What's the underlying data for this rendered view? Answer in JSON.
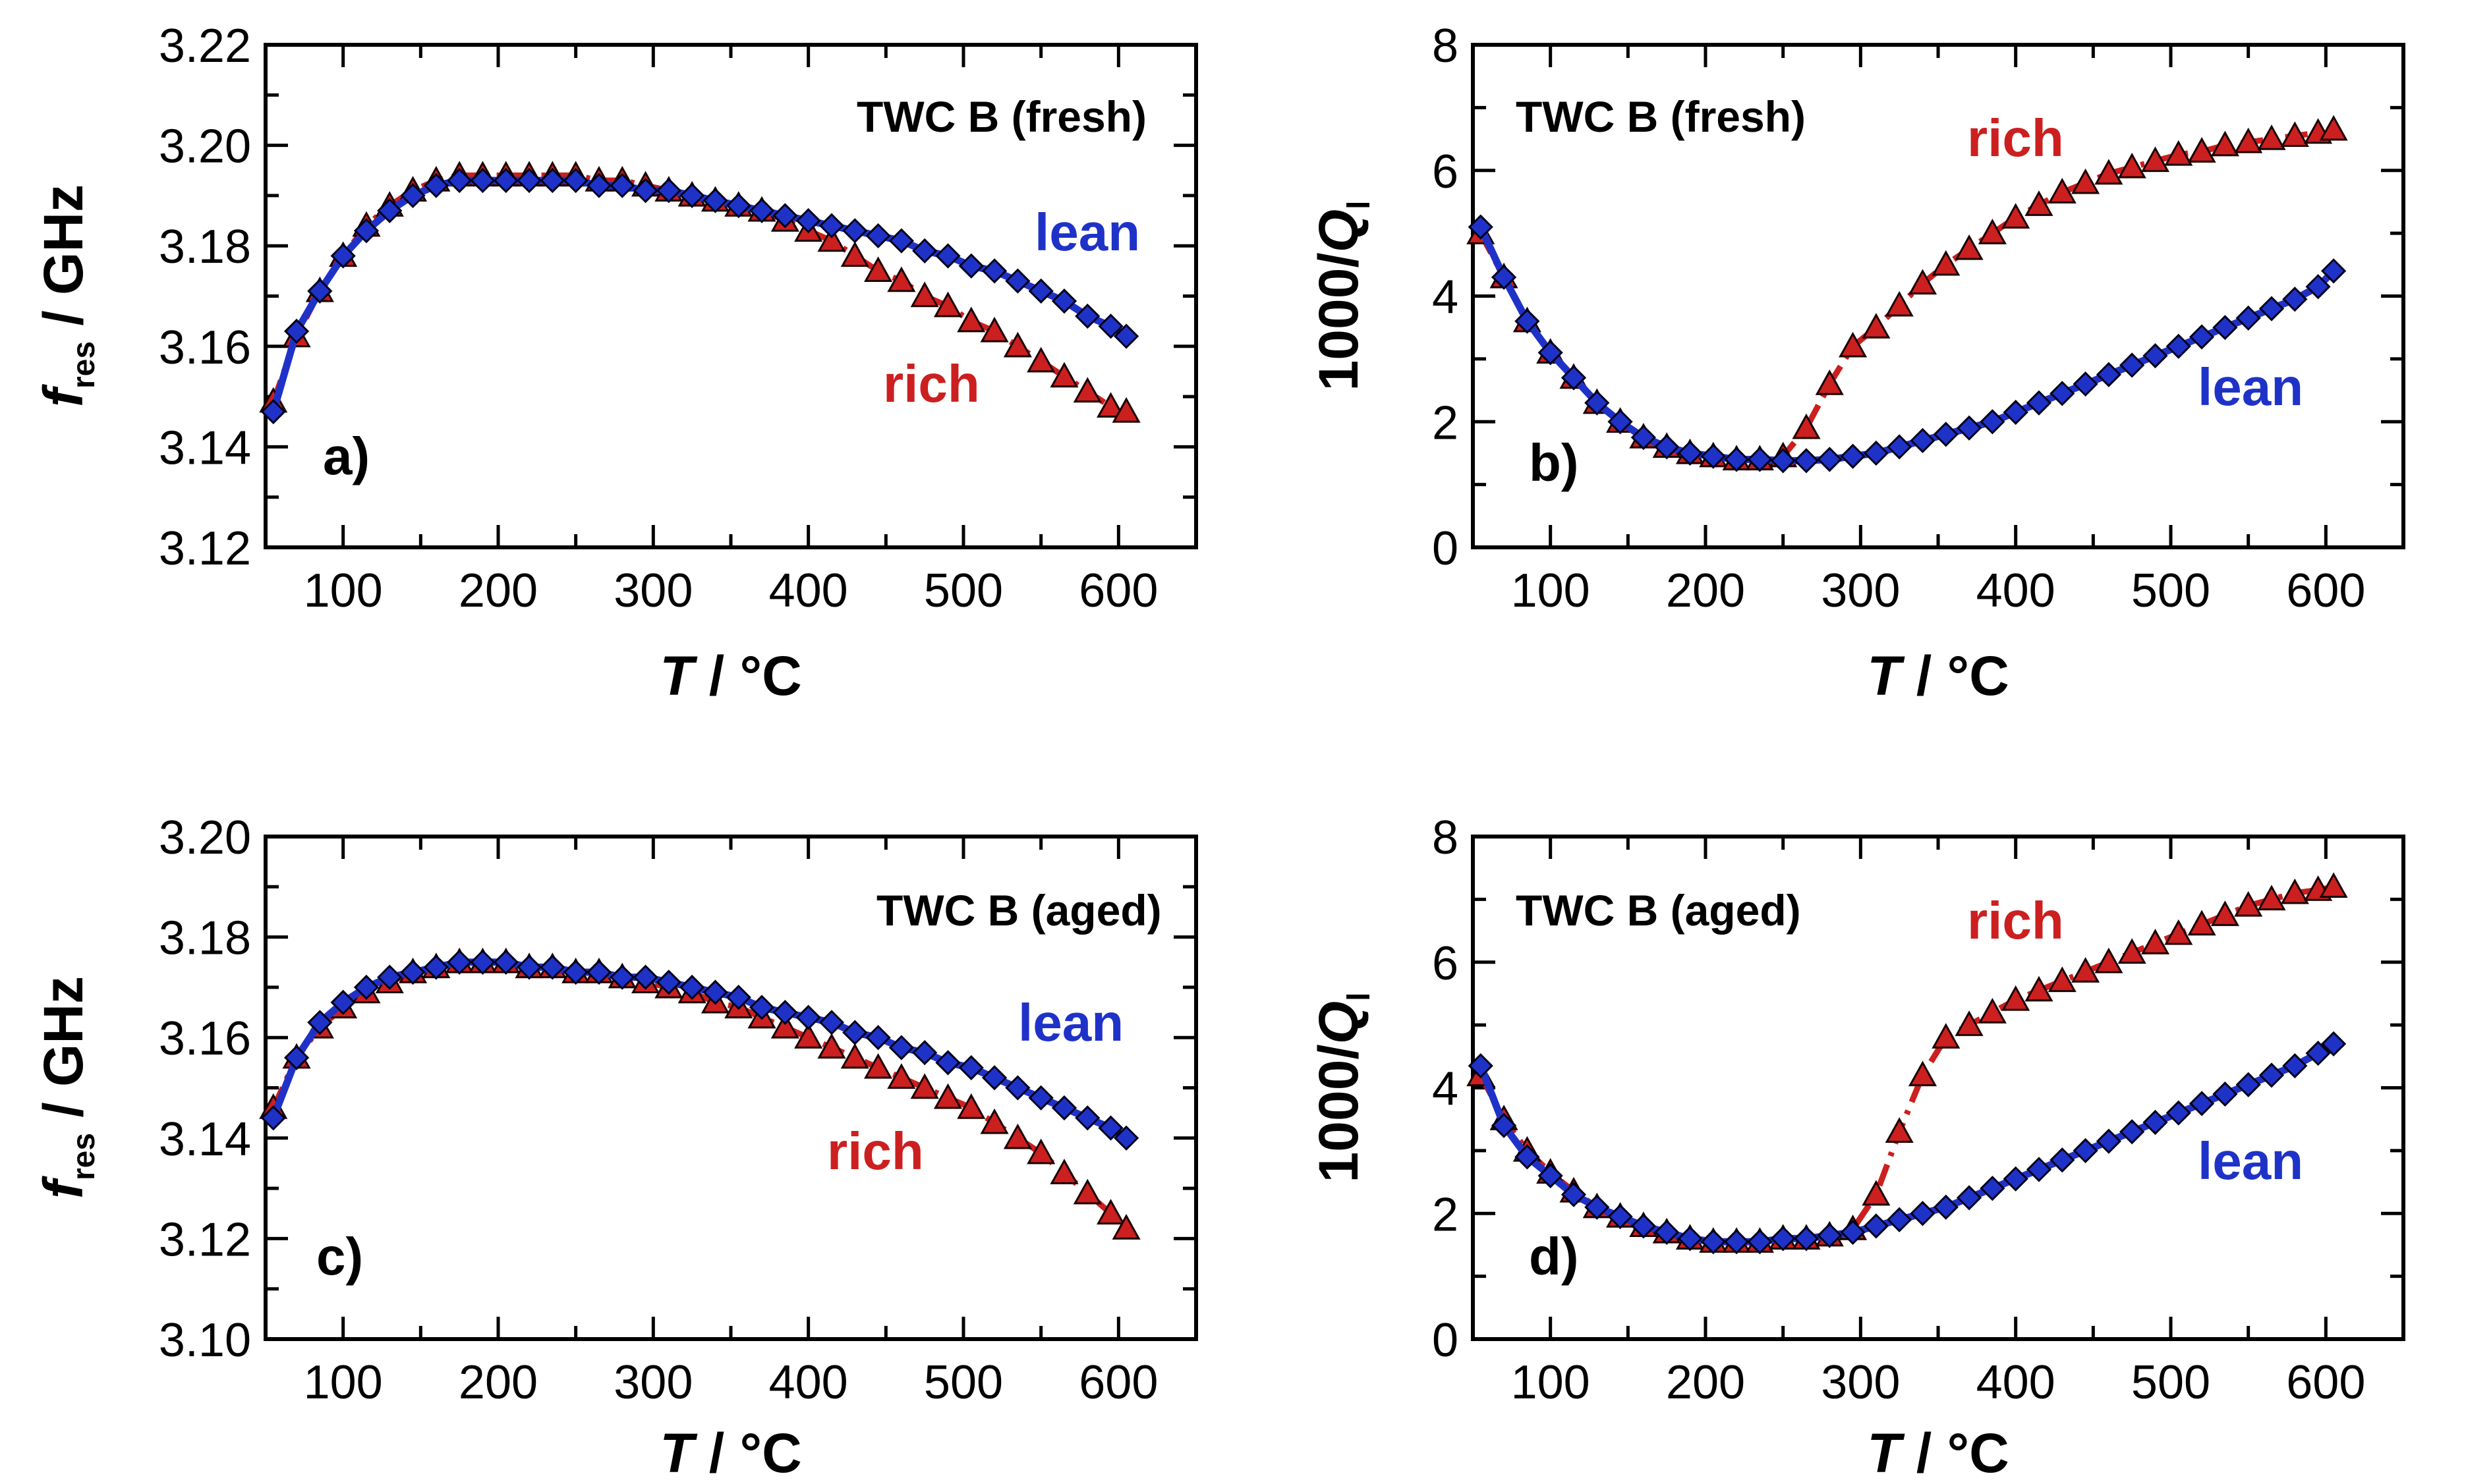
{
  "chart_data": [
    {
      "type": "line",
      "panel_label": "a)",
      "condition_label": "TWC B (fresh)",
      "xlabel_italic": "T",
      "xlabel_rest": " / °C",
      "ylabel_italic": "f",
      "ylabel_sub": "res",
      "ylabel_rest": " / GHz",
      "xlim": [
        50,
        650
      ],
      "ylim": [
        3.12,
        3.22
      ],
      "xticks": [
        "100",
        "200",
        "300",
        "400",
        "500",
        "600"
      ],
      "yticks": [
        "3.12",
        "3.14",
        "3.16",
        "3.18",
        "3.20",
        "3.22"
      ],
      "series": [
        {
          "name": "rich",
          "label": "rich",
          "color": "#cc1f1f",
          "marker": "triangle",
          "x": [
            55,
            70,
            85,
            100,
            115,
            130,
            145,
            160,
            175,
            190,
            205,
            220,
            235,
            250,
            265,
            280,
            295,
            310,
            325,
            340,
            355,
            370,
            385,
            400,
            415,
            430,
            445,
            460,
            475,
            490,
            505,
            520,
            535,
            550,
            565,
            580,
            595,
            605
          ],
          "y": [
            3.149,
            3.162,
            3.171,
            3.178,
            3.184,
            3.188,
            3.191,
            3.193,
            3.194,
            3.194,
            3.194,
            3.194,
            3.194,
            3.194,
            3.193,
            3.193,
            3.192,
            3.191,
            3.19,
            3.189,
            3.188,
            3.187,
            3.185,
            3.183,
            3.181,
            3.178,
            3.175,
            3.173,
            3.17,
            3.168,
            3.165,
            3.163,
            3.16,
            3.157,
            3.154,
            3.151,
            3.148,
            3.147
          ]
        },
        {
          "name": "lean",
          "label": "lean",
          "color": "#1f32c8",
          "marker": "diamond",
          "x": [
            55,
            70,
            85,
            100,
            115,
            130,
            145,
            160,
            175,
            190,
            205,
            220,
            235,
            250,
            265,
            280,
            295,
            310,
            325,
            340,
            355,
            370,
            385,
            400,
            415,
            430,
            445,
            460,
            475,
            490,
            505,
            520,
            535,
            550,
            565,
            580,
            595,
            605
          ],
          "y": [
            3.147,
            3.163,
            3.171,
            3.178,
            3.183,
            3.187,
            3.19,
            3.192,
            3.193,
            3.193,
            3.193,
            3.193,
            3.193,
            3.193,
            3.192,
            3.192,
            3.191,
            3.191,
            3.19,
            3.189,
            3.188,
            3.187,
            3.186,
            3.185,
            3.184,
            3.183,
            3.182,
            3.181,
            3.179,
            3.178,
            3.176,
            3.175,
            3.173,
            3.171,
            3.169,
            3.166,
            3.164,
            3.162
          ]
        }
      ]
    },
    {
      "type": "line",
      "panel_label": "b)",
      "condition_label": "TWC B (fresh)",
      "xlabel_italic": "T",
      "xlabel_rest": " / °C",
      "ylabel_italic": "Q",
      "ylabel_prefix": "1000/",
      "ylabel_sub": "l",
      "xlim": [
        50,
        650
      ],
      "ylim": [
        0,
        8
      ],
      "xticks": [
        "100",
        "200",
        "300",
        "400",
        "500",
        "600"
      ],
      "yticks": [
        "0",
        "2",
        "4",
        "6",
        "8"
      ],
      "series": [
        {
          "name": "rich",
          "label": "rich",
          "color": "#cc1f1f",
          "marker": "triangle",
          "x": [
            55,
            70,
            85,
            100,
            115,
            130,
            145,
            160,
            175,
            190,
            205,
            220,
            235,
            250,
            265,
            280,
            295,
            310,
            325,
            340,
            355,
            370,
            385,
            400,
            415,
            430,
            445,
            460,
            475,
            490,
            505,
            520,
            535,
            550,
            565,
            580,
            595,
            605
          ],
          "y": [
            5.0,
            4.3,
            3.6,
            3.1,
            2.7,
            2.3,
            2.0,
            1.75,
            1.6,
            1.5,
            1.45,
            1.4,
            1.4,
            1.45,
            1.9,
            2.6,
            3.2,
            3.5,
            3.85,
            4.2,
            4.5,
            4.75,
            5.0,
            5.25,
            5.45,
            5.65,
            5.8,
            5.95,
            6.05,
            6.15,
            6.25,
            6.3,
            6.4,
            6.45,
            6.5,
            6.55,
            6.6,
            6.65
          ]
        },
        {
          "name": "lean",
          "label": "lean",
          "color": "#1f32c8",
          "marker": "diamond",
          "x": [
            55,
            70,
            85,
            100,
            115,
            130,
            145,
            160,
            175,
            190,
            205,
            220,
            235,
            250,
            265,
            280,
            295,
            310,
            325,
            340,
            355,
            370,
            385,
            400,
            415,
            430,
            445,
            460,
            475,
            490,
            505,
            520,
            535,
            550,
            565,
            580,
            595,
            605
          ],
          "y": [
            5.1,
            4.3,
            3.6,
            3.1,
            2.7,
            2.3,
            2.0,
            1.75,
            1.6,
            1.5,
            1.45,
            1.4,
            1.4,
            1.38,
            1.38,
            1.4,
            1.45,
            1.5,
            1.6,
            1.7,
            1.8,
            1.9,
            2.0,
            2.15,
            2.3,
            2.45,
            2.6,
            2.75,
            2.9,
            3.05,
            3.2,
            3.35,
            3.5,
            3.65,
            3.8,
            3.95,
            4.15,
            4.4
          ]
        }
      ]
    },
    {
      "type": "line",
      "panel_label": "c)",
      "condition_label": "TWC B (aged)",
      "xlabel_italic": "T",
      "xlabel_rest": " / °C",
      "ylabel_italic": "f",
      "ylabel_sub": "res",
      "ylabel_rest": " / GHz",
      "xlim": [
        50,
        650
      ],
      "ylim": [
        3.1,
        3.2
      ],
      "xticks": [
        "100",
        "200",
        "300",
        "400",
        "500",
        "600"
      ],
      "yticks": [
        "3.10",
        "3.12",
        "3.14",
        "3.16",
        "3.18",
        "3.20"
      ],
      "series": [
        {
          "name": "rich",
          "label": "rich",
          "color": "#cc1f1f",
          "marker": "triangle",
          "x": [
            55,
            70,
            85,
            100,
            115,
            130,
            145,
            160,
            175,
            190,
            205,
            220,
            235,
            250,
            265,
            280,
            295,
            310,
            325,
            340,
            355,
            370,
            385,
            400,
            415,
            430,
            445,
            460,
            475,
            490,
            505,
            520,
            535,
            550,
            565,
            580,
            595,
            605
          ],
          "y": [
            3.146,
            3.156,
            3.162,
            3.166,
            3.169,
            3.171,
            3.173,
            3.174,
            3.175,
            3.175,
            3.175,
            3.174,
            3.174,
            3.173,
            3.173,
            3.172,
            3.171,
            3.17,
            3.169,
            3.167,
            3.166,
            3.164,
            3.162,
            3.16,
            3.158,
            3.156,
            3.154,
            3.152,
            3.15,
            3.148,
            3.146,
            3.143,
            3.14,
            3.137,
            3.133,
            3.129,
            3.125,
            3.122
          ]
        },
        {
          "name": "lean",
          "label": "lean",
          "color": "#1f32c8",
          "marker": "diamond",
          "x": [
            55,
            70,
            85,
            100,
            115,
            130,
            145,
            160,
            175,
            190,
            205,
            220,
            235,
            250,
            265,
            280,
            295,
            310,
            325,
            340,
            355,
            370,
            385,
            400,
            415,
            430,
            445,
            460,
            475,
            490,
            505,
            520,
            535,
            550,
            565,
            580,
            595,
            605
          ],
          "y": [
            3.144,
            3.156,
            3.163,
            3.167,
            3.17,
            3.172,
            3.173,
            3.174,
            3.175,
            3.175,
            3.175,
            3.174,
            3.174,
            3.173,
            3.173,
            3.172,
            3.172,
            3.171,
            3.17,
            3.169,
            3.168,
            3.166,
            3.165,
            3.164,
            3.163,
            3.161,
            3.16,
            3.158,
            3.157,
            3.155,
            3.154,
            3.152,
            3.15,
            3.148,
            3.146,
            3.144,
            3.142,
            3.14
          ]
        }
      ]
    },
    {
      "type": "line",
      "panel_label": "d)",
      "condition_label": "TWC B (aged)",
      "xlabel_italic": "T",
      "xlabel_rest": " / °C",
      "ylabel_italic": "Q",
      "ylabel_prefix": "1000/",
      "ylabel_sub": "l",
      "xlim": [
        50,
        650
      ],
      "ylim": [
        0,
        8
      ],
      "xticks": [
        "100",
        "200",
        "300",
        "400",
        "500",
        "600"
      ],
      "yticks": [
        "0",
        "2",
        "4",
        "6",
        "8"
      ],
      "series": [
        {
          "name": "rich",
          "label": "rich",
          "color": "#cc1f1f",
          "marker": "triangle",
          "x": [
            55,
            70,
            85,
            100,
            115,
            130,
            145,
            160,
            175,
            190,
            205,
            220,
            235,
            250,
            265,
            280,
            295,
            310,
            325,
            340,
            355,
            370,
            385,
            400,
            415,
            430,
            445,
            460,
            475,
            490,
            505,
            520,
            535,
            550,
            565,
            580,
            595,
            605
          ],
          "y": [
            4.2,
            3.5,
            3.0,
            2.65,
            2.35,
            2.1,
            1.95,
            1.8,
            1.7,
            1.6,
            1.55,
            1.55,
            1.55,
            1.6,
            1.6,
            1.65,
            1.75,
            2.3,
            3.3,
            4.2,
            4.8,
            5.0,
            5.2,
            5.4,
            5.55,
            5.7,
            5.85,
            6.0,
            6.15,
            6.3,
            6.45,
            6.6,
            6.75,
            6.9,
            7.0,
            7.1,
            7.15,
            7.2
          ]
        },
        {
          "name": "lean",
          "label": "lean",
          "color": "#1f32c8",
          "marker": "diamond",
          "x": [
            55,
            70,
            85,
            100,
            115,
            130,
            145,
            160,
            175,
            190,
            205,
            220,
            235,
            250,
            265,
            280,
            295,
            310,
            325,
            340,
            355,
            370,
            385,
            400,
            415,
            430,
            445,
            460,
            475,
            490,
            505,
            520,
            535,
            550,
            565,
            580,
            595,
            605
          ],
          "y": [
            4.35,
            3.4,
            2.9,
            2.6,
            2.3,
            2.1,
            1.95,
            1.8,
            1.7,
            1.6,
            1.55,
            1.55,
            1.55,
            1.6,
            1.6,
            1.65,
            1.7,
            1.8,
            1.9,
            2.0,
            2.1,
            2.25,
            2.4,
            2.55,
            2.7,
            2.85,
            3.0,
            3.15,
            3.3,
            3.45,
            3.6,
            3.75,
            3.9,
            4.05,
            4.2,
            4.35,
            4.55,
            4.7
          ]
        }
      ]
    }
  ]
}
